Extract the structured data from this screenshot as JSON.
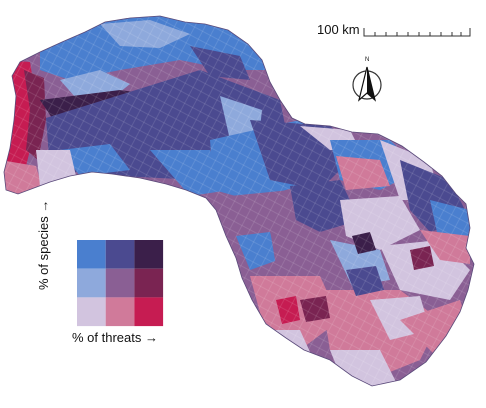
{
  "scale_bar": {
    "label": "100 km"
  },
  "north_arrow": {
    "letter": "N",
    "icon": "north-arrow-icon"
  },
  "legend": {
    "x_label": "% of threats →",
    "y_label": "% of species →",
    "colors": [
      [
        "#4a7fcf",
        "#4b4a90",
        "#3b1f4a"
      ],
      [
        "#8ea9dc",
        "#8a5f94",
        "#7a2452"
      ],
      [
        "#d2c4df",
        "#d07a9a",
        "#c61c52"
      ]
    ]
  },
  "map": {
    "palette": {
      "blue": "#4a7fcf",
      "light_blue": "#8ea9dc",
      "navy": "#4b4a90",
      "dark_purple": "#3b1f4a",
      "lilac": "#d2c4df",
      "mauve": "#8a5f94",
      "pink": "#d07a9a",
      "crimson": "#c61c52",
      "wine": "#7a2452"
    }
  }
}
